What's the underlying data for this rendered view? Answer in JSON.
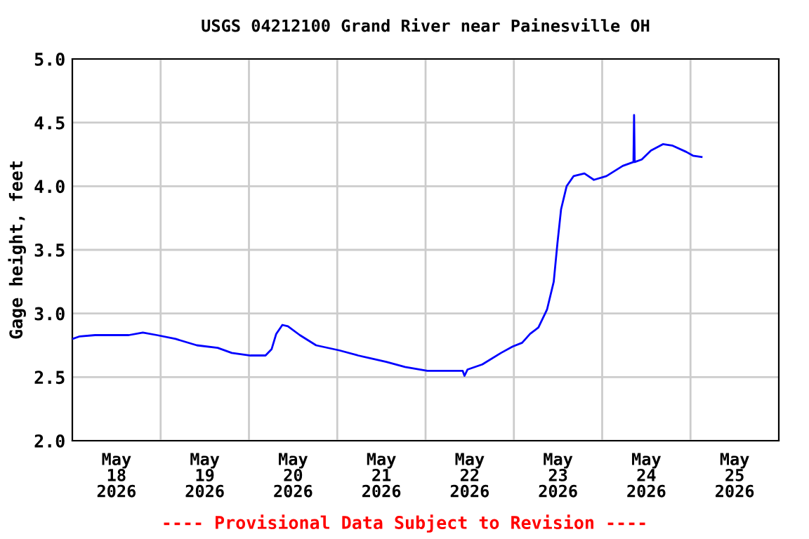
{
  "chart_data": {
    "type": "line",
    "title": "USGS 04212100 Grand River near Painesville OH",
    "ylabel": "Gage height, feet",
    "annotations": [
      "---- Provisional Data Subject to Revision ----"
    ],
    "x": [
      "2026-05-18T00:00",
      "2026-05-18T02:00",
      "2026-05-18T06:10",
      "2026-05-18T15:20",
      "2026-05-18T19:10",
      "2026-05-18T23:00",
      "2026-05-19T04:05",
      "2026-05-19T09:50",
      "2026-05-19T15:30",
      "2026-05-19T19:20",
      "2026-05-20T00:25",
      "2026-05-20T04:30",
      "2026-05-20T06:10",
      "2026-05-20T07:25",
      "2026-05-20T09:05",
      "2026-05-20T10:35",
      "2026-05-20T13:50",
      "2026-05-20T18:15",
      "2026-05-21T00:35",
      "2026-05-21T05:40",
      "2026-05-21T13:20",
      "2026-05-21T18:25",
      "2026-05-22T00:30",
      "2026-05-22T10:05",
      "2026-05-22T10:35",
      "2026-05-22T11:25",
      "2026-05-22T15:25",
      "2026-05-22T20:30",
      "2026-05-22T23:40",
      "2026-05-23T02:15",
      "2026-05-23T04:25",
      "2026-05-23T06:40",
      "2026-05-23T09:00",
      "2026-05-23T10:50",
      "2026-05-23T11:50",
      "2026-05-23T12:50",
      "2026-05-23T14:20",
      "2026-05-23T16:15",
      "2026-05-23T19:10",
      "2026-05-23T21:45",
      "2026-05-24T01:10",
      "2026-05-24T05:35",
      "2026-05-24T08:30",
      "2026-05-24T08:40",
      "2026-05-24T08:50",
      "2026-05-24T10:45",
      "2026-05-24T13:15",
      "2026-05-24T16:30",
      "2026-05-24T19:00",
      "2026-05-24T22:50",
      "2026-05-25T00:40",
      "2026-05-25T03:00"
    ],
    "series": [
      {
        "color": "#0000ff",
        "values": [
          2.8,
          2.82,
          2.83,
          2.83,
          2.85,
          2.83,
          2.8,
          2.75,
          2.73,
          2.69,
          2.67,
          2.67,
          2.72,
          2.84,
          2.91,
          2.9,
          2.83,
          2.75,
          2.71,
          2.67,
          2.62,
          2.58,
          2.55,
          2.55,
          2.51,
          2.56,
          2.6,
          2.69,
          2.74,
          2.77,
          2.84,
          2.89,
          3.03,
          3.25,
          3.55,
          3.82,
          4.0,
          4.08,
          4.1,
          4.05,
          4.08,
          4.16,
          4.19,
          4.56,
          4.19,
          4.21,
          4.28,
          4.33,
          4.32,
          4.27,
          4.24,
          4.23
        ]
      }
    ],
    "xlim": [
      "2026-05-18T00:00",
      "2026-05-26T00:00"
    ],
    "xticks": [
      {
        "value": "2026-05-18T12:00",
        "label": "May\n18\n2026"
      },
      {
        "value": "2026-05-19T00:00",
        "label": null
      },
      {
        "value": "2026-05-19T12:00",
        "label": "May\n19\n2026"
      },
      {
        "value": "2026-05-20T00:00",
        "label": null
      },
      {
        "value": "2026-05-20T12:00",
        "label": "May\n20\n2026"
      },
      {
        "value": "2026-05-21T00:00",
        "label": null
      },
      {
        "value": "2026-05-21T12:00",
        "label": "May\n21\n2026"
      },
      {
        "value": "2026-05-22T00:00",
        "label": null
      },
      {
        "value": "2026-05-22T12:00",
        "label": "May\n22\n2026"
      },
      {
        "value": "2026-05-23T00:00",
        "label": null
      },
      {
        "value": "2026-05-23T12:00",
        "label": "May\n23\n2026"
      },
      {
        "value": "2026-05-24T00:00",
        "label": null
      },
      {
        "value": "2026-05-24T12:00",
        "label": "May\n24\n2026"
      },
      {
        "value": "2026-05-25T00:00",
        "label": null
      },
      {
        "value": "2026-05-25T12:00",
        "label": "May\n25\n2026"
      }
    ],
    "ylim": [
      2.0,
      5.0
    ],
    "yticks": [
      {
        "value": 2.0,
        "label": "2.0"
      },
      {
        "value": 2.5,
        "label": "2.5"
      },
      {
        "value": 3.0,
        "label": "3.0"
      },
      {
        "value": 3.5,
        "label": "3.5"
      },
      {
        "value": 4.0,
        "label": "4.0"
      },
      {
        "value": 4.5,
        "label": "4.5"
      },
      {
        "value": 5.0,
        "label": "5.0"
      }
    ],
    "grid": true,
    "marker": "none",
    "line_style": "solid"
  }
}
